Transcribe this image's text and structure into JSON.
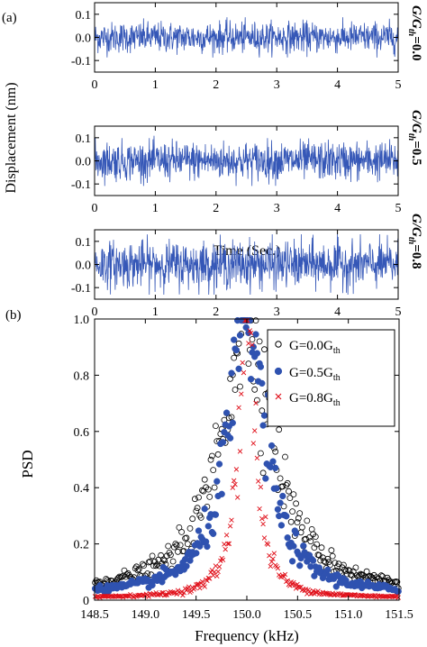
{
  "colors": {
    "signal": "#3557b7",
    "series_open": "#000000",
    "series_filled": "#2f52b0",
    "series_cross": "#e0101a"
  },
  "panel_a": {
    "label": "(a)",
    "ylabel": "Displacement (nm)",
    "xlabel": "Time (Sec.)",
    "y_ticks": [
      "0.1",
      "0.0",
      "-0.1"
    ],
    "x_ticks": [
      "0",
      "1",
      "2",
      "3",
      "4",
      "5"
    ],
    "side_labels": [
      {
        "pre": "G/G",
        "sub": "th",
        "post": "=0.0"
      },
      {
        "pre": "G/G",
        "sub": "th",
        "post": "=0.5"
      },
      {
        "pre": "G/G",
        "sub": "th",
        "post": "=0.8"
      }
    ]
  },
  "panel_b": {
    "label": "(b)",
    "ylabel": "PSD",
    "xlabel": "Frequency (kHz)",
    "y_ticks": [
      "1.0",
      "0.8",
      "0.6",
      "0.4",
      "0.2",
      "0"
    ],
    "x_ticks": [
      "148.5",
      "149.0",
      "149.5",
      "150.0",
      "150.5",
      "151.0",
      "151.5"
    ],
    "legend": [
      {
        "pre": "G=0.0G",
        "sub": "th",
        "marker": "open-circle"
      },
      {
        "pre": "G=0.5G",
        "sub": "th",
        "marker": "filled-circle"
      },
      {
        "pre": "G=0.8G",
        "sub": "th",
        "marker": "cross"
      }
    ]
  },
  "chart_data": [
    {
      "type": "line",
      "series": [
        {
          "name": "G/Gth=0.0",
          "amplitude_nm": 0.06
        }
      ],
      "x_range": [
        0,
        5
      ],
      "ylim": [
        -0.15,
        0.15
      ],
      "ylabel": "Displacement (nm)"
    },
    {
      "type": "line",
      "series": [
        {
          "name": "G/Gth=0.5",
          "amplitude_nm": 0.075
        }
      ],
      "x_range": [
        0,
        5
      ],
      "ylim": [
        -0.15,
        0.15
      ],
      "ylabel": "Displacement (nm)"
    },
    {
      "type": "line",
      "series": [
        {
          "name": "G/Gth=0.8",
          "amplitude_nm": 0.09
        }
      ],
      "x_range": [
        0,
        5
      ],
      "ylim": [
        -0.15,
        0.15
      ],
      "ylabel": "Displacement (nm)",
      "xlabel": "Time (Sec.)"
    },
    {
      "type": "scatter",
      "xlabel": "Frequency (kHz)",
      "ylabel": "PSD",
      "xlim": [
        148.5,
        151.5
      ],
      "ylim": [
        0,
        1.0
      ],
      "legend_position": "top-right",
      "series": [
        {
          "name": "G=0.0Gth",
          "center_kHz": 150.0,
          "half_width_kHz": 0.3,
          "baseline": 0.025
        },
        {
          "name": "G=0.5Gth",
          "center_kHz": 150.0,
          "half_width_kHz": 0.22,
          "baseline": 0.018
        },
        {
          "name": "G=0.8Gth",
          "center_kHz": 150.0,
          "half_width_kHz": 0.1,
          "baseline": 0.008
        }
      ]
    }
  ]
}
